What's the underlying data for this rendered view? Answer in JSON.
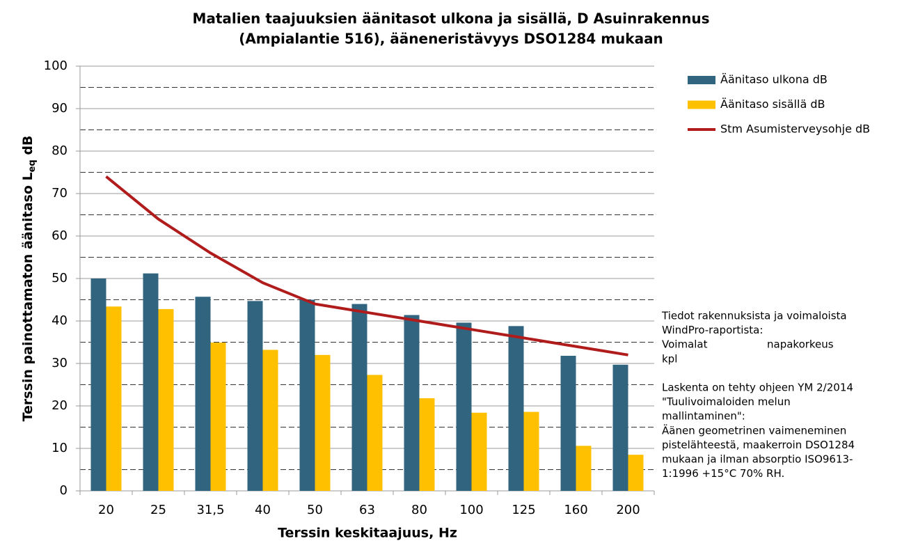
{
  "chart_data": {
    "type": "bar",
    "title": [
      "Matalien taajuuksien äänitasot ulkona ja sisällä, D Asuinrakennus",
      "(Ampialantie 516), ääneneristävyys DSO1284 mukaan"
    ],
    "xlabel": "Terssin keskitaajuus, Hz",
    "ylabel": {
      "main": "Terssin painottamaton äänitaso L",
      "sub": "eq",
      "unit": " dB"
    },
    "categories": [
      "20",
      "25",
      "31,5",
      "40",
      "50",
      "63",
      "80",
      "100",
      "125",
      "160",
      "200"
    ],
    "series": [
      {
        "name": "Äänitaso ulkona dB",
        "kind": "bar",
        "color": "#31657f",
        "values": [
          50,
          51.2,
          45.7,
          44.7,
          45,
          44,
          41.4,
          39.6,
          38.8,
          31.8,
          29.7
        ]
      },
      {
        "name": "Äänitaso sisällä dB",
        "kind": "bar",
        "color": "#ffc000",
        "values": [
          43.4,
          42.8,
          34.9,
          33.2,
          32,
          27.3,
          21.8,
          18.4,
          18.6,
          10.6,
          8.5
        ]
      },
      {
        "name": "Stm Asumisterveysohje dB",
        "kind": "line",
        "color": "#b01c1c",
        "values": [
          74,
          64,
          56,
          49,
          44,
          42,
          40,
          38,
          36,
          34,
          32
        ]
      }
    ],
    "ylim": [
      0,
      100
    ],
    "yticks": [
      0,
      10,
      20,
      30,
      40,
      50,
      60,
      70,
      80,
      90,
      100
    ],
    "minor_grid": [
      5,
      15,
      25,
      35,
      45,
      55,
      65,
      75,
      85,
      95
    ],
    "grid": true,
    "legend": "right",
    "notes": [
      [
        "Tiedot rakennuksista ja voimaloista",
        "WindPro-raportista:",
        [
          "Voimalat",
          "napakorkeus"
        ],
        "kpl"
      ],
      [
        "Laskenta on tehty ohjeen YM 2/2014",
        "\"Tuulivoimaloiden melun",
        "mallintaminen\":",
        "Äänen geometrinen vaimeneminen",
        "pistelähteestä, maakerroin DSO1284",
        "mukaan ja ilman absorptio ISO9613-",
        "1:1996  +15°C 70% RH."
      ]
    ]
  }
}
